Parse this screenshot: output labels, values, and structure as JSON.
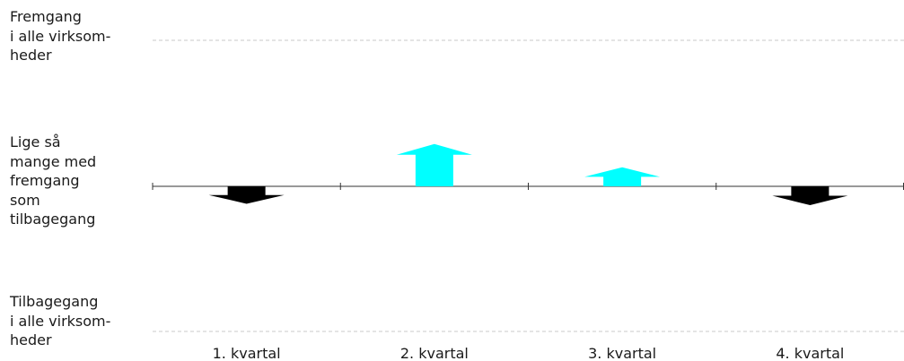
{
  "y_axis_labels": {
    "top": "Fremgang\ni alle virksom-\nheder",
    "middle": "Lige så\nmange med\nfremgang\nsom\ntilbagegang",
    "bottom": "Tilbagegang\ni alle virksom-\nheder"
  },
  "colors": {
    "positive": "#00ffff",
    "negative": "#000000",
    "gridline": "#c8c8c8",
    "axis": "#333333"
  },
  "chart_data": {
    "type": "bar",
    "categories": [
      "1. kvartal",
      "2. kvartal",
      "3. kvartal",
      "4. kvartal"
    ],
    "values": [
      -12,
      29,
      13,
      -13
    ],
    "ylim": [
      -100,
      100
    ],
    "grid": true,
    "title": "",
    "xlabel": "",
    "ylabel": ""
  }
}
